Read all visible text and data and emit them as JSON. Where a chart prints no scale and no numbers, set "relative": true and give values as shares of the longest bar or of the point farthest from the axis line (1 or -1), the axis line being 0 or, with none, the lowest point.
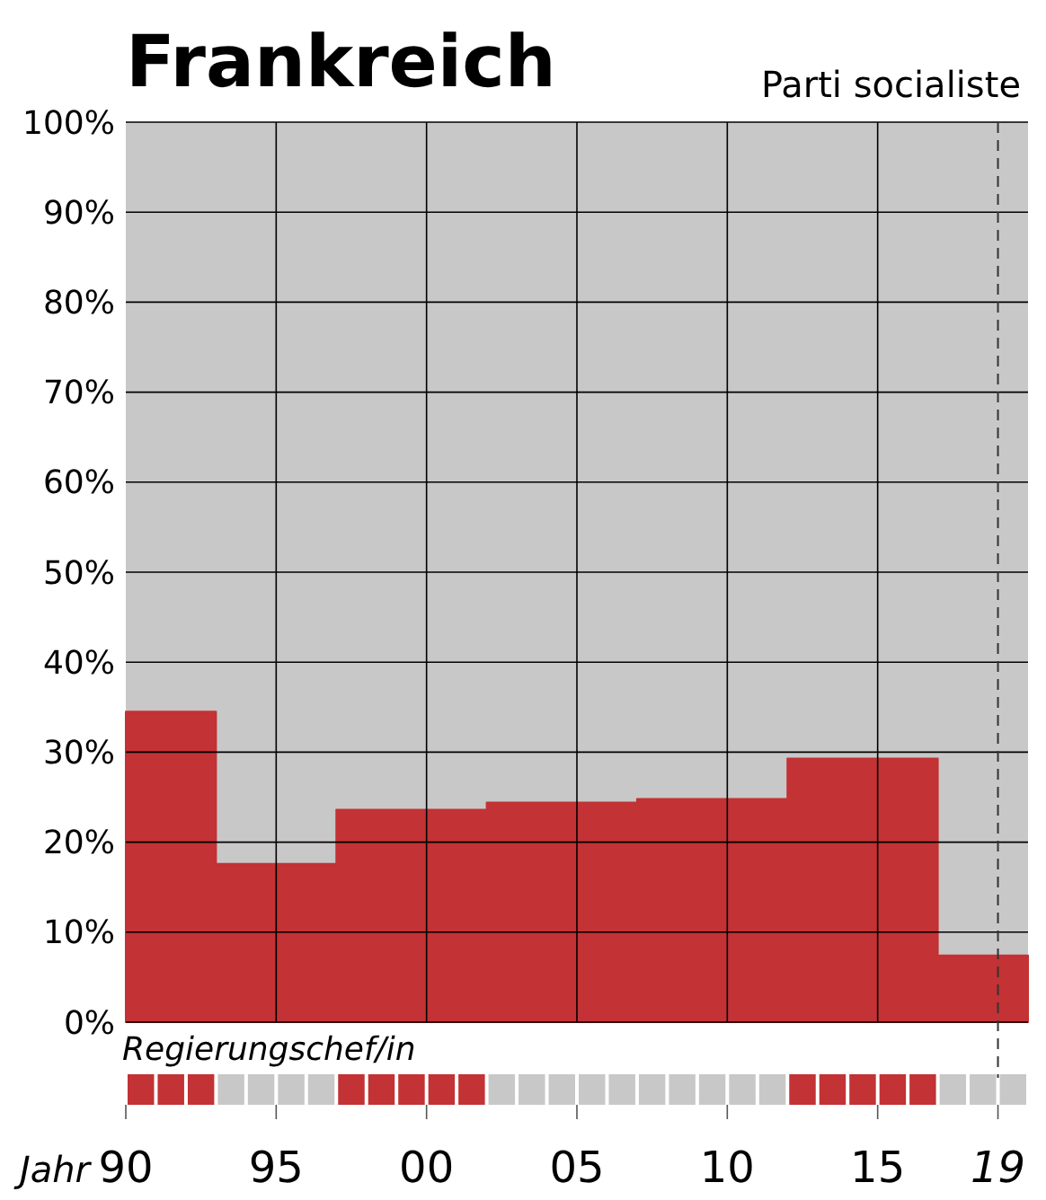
{
  "chart_data": [
    {
      "type": "area",
      "title": "Frankreich",
      "subtitle": "Parti socialiste",
      "x": [
        1990,
        1993,
        1993,
        1997,
        1997,
        2002,
        2002,
        2007,
        2007,
        2012,
        2012,
        2017,
        2017,
        2020
      ],
      "values": [
        34.5,
        34.5,
        17.6,
        17.6,
        23.6,
        23.6,
        24.4,
        24.4,
        24.8,
        24.8,
        29.3,
        29.3,
        7.4,
        7.4
      ],
      "color": "#c33234",
      "xlim": [
        1990,
        2020
      ],
      "xticks": [
        {
          "value": 1995,
          "label": null
        },
        {
          "value": 2000,
          "label": null
        },
        {
          "value": 2005,
          "label": null
        },
        {
          "value": 2010,
          "label": null
        },
        {
          "value": 2015,
          "label": null
        }
      ],
      "ylim": [
        0,
        100
      ],
      "yticks": [
        {
          "value": 0,
          "label": "0%"
        },
        {
          "value": 10,
          "label": "10%"
        },
        {
          "value": 20,
          "label": "20%"
        },
        {
          "value": 30,
          "label": "30%"
        },
        {
          "value": 40,
          "label": "40%"
        },
        {
          "value": 50,
          "label": "50%"
        },
        {
          "value": 60,
          "label": "60%"
        },
        {
          "value": 70,
          "label": "70%"
        },
        {
          "value": 80,
          "label": "80%"
        },
        {
          "value": 90,
          "label": "90%"
        },
        {
          "value": 100,
          "label": "100%"
        }
      ],
      "grid": true,
      "tick_labels": "y",
      "ref_lines": [
        {
          "axis": "x",
          "value": 2019,
          "line_style": "dashed"
        }
      ]
    },
    {
      "type": "bar",
      "title": "Regierungschef/in",
      "xlabel": "Jahr",
      "relative": true,
      "x": [
        1990.5,
        1991.5,
        1992.5,
        1993.5,
        1994.5,
        1995.5,
        1996.5,
        1997.5,
        1998.5,
        1999.5,
        2000.5,
        2001.5,
        2002.5,
        2003.5,
        2004.5,
        2005.5,
        2006.5,
        2007.5,
        2008.5,
        2009.5,
        2010.5,
        2011.5,
        2012.5,
        2013.5,
        2014.5,
        2015.5,
        2016.5,
        2017.5,
        2018.5,
        2019.5
      ],
      "values": [
        1,
        1,
        1,
        1,
        1,
        1,
        1,
        1,
        1,
        1,
        1,
        1,
        1,
        1,
        1,
        1,
        1,
        1,
        1,
        1,
        1,
        1,
        1,
        1,
        1,
        1,
        1,
        1,
        1,
        1
      ],
      "colors": [
        "#c33234",
        "#c33234",
        "#c33234",
        "#c8c8c8",
        "#c8c8c8",
        "#c8c8c8",
        "#c8c8c8",
        "#c33234",
        "#c33234",
        "#c33234",
        "#c33234",
        "#c33234",
        "#c8c8c8",
        "#c8c8c8",
        "#c8c8c8",
        "#c8c8c8",
        "#c8c8c8",
        "#c8c8c8",
        "#c8c8c8",
        "#c8c8c8",
        "#c8c8c8",
        "#c8c8c8",
        "#c33234",
        "#c33234",
        "#c33234",
        "#c33234",
        "#c33234",
        "#c8c8c8",
        "#c8c8c8",
        "#c8c8c8"
      ],
      "xlim": [
        1990,
        2020
      ],
      "xticks": [
        {
          "value": 1990,
          "label": "90"
        },
        {
          "value": 1995,
          "label": "95"
        },
        {
          "value": 2000,
          "label": "00"
        },
        {
          "value": 2005,
          "label": "05"
        },
        {
          "value": 2010,
          "label": "10"
        },
        {
          "value": 2015,
          "label": "15"
        },
        {
          "value": 2019,
          "label": "19"
        }
      ],
      "tick_labels": "x"
    }
  ]
}
